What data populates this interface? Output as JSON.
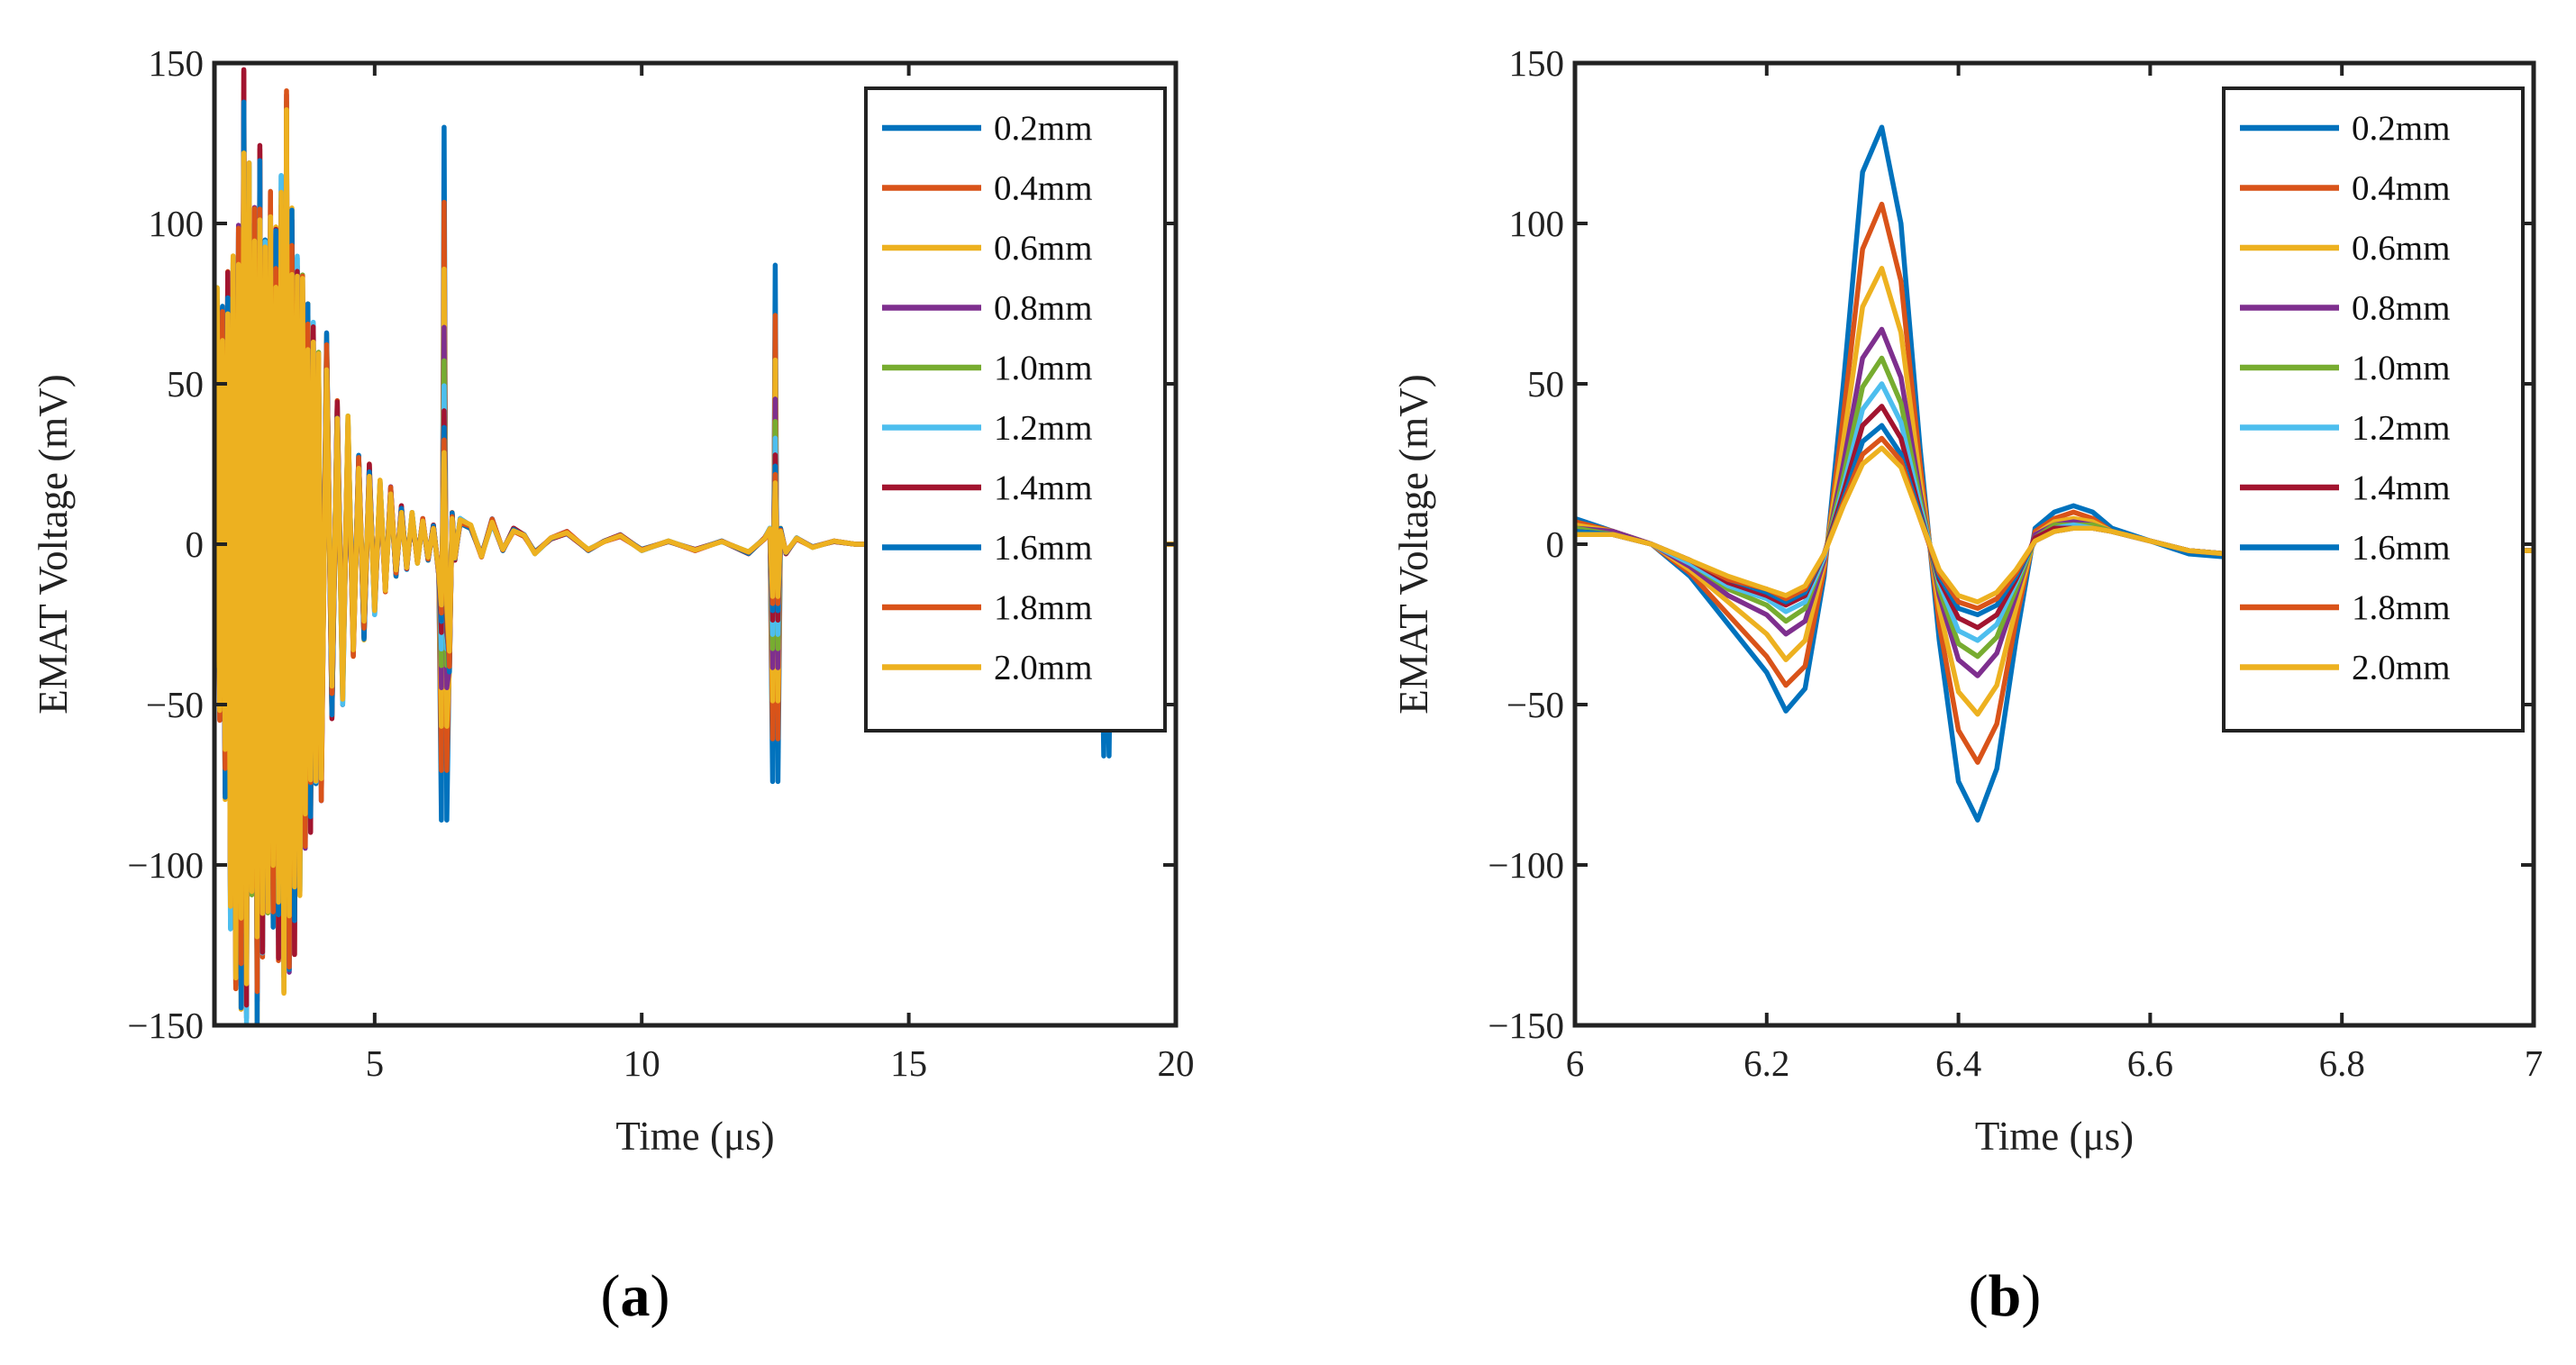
{
  "colors": {
    "s1": "#0072BD",
    "s2": "#D95319",
    "s3": "#EDB120",
    "s4": "#7E2F8E",
    "s5": "#77AC30",
    "s6": "#4DBEEE",
    "s7": "#A2142F",
    "s8": "#0072BD",
    "s9": "#D95319",
    "s10": "#EDB120"
  },
  "chart_data": [
    {
      "id": "a",
      "type": "line",
      "panel_label": {
        "open": "(",
        "letter": "a",
        "close": ")"
      },
      "xlabel": "Time (μs)",
      "ylabel": "EMAT Voltage (mV)",
      "xlim": [
        2,
        20
      ],
      "ylim": [
        -150,
        150
      ],
      "xticks": [
        5,
        10,
        15,
        20
      ],
      "xtick_labels": [
        "5",
        "10",
        "15",
        "20"
      ],
      "yticks": [
        -150,
        -100,
        -50,
        0,
        50,
        100,
        150
      ],
      "ytick_labels": [
        "−150",
        "−100",
        "−50",
        "0",
        "50",
        "100",
        "150"
      ],
      "legend_position": "top-right",
      "legend": [
        "0.2mm",
        "0.4mm",
        "0.6mm",
        "0.8mm",
        "1.0mm",
        "1.2mm",
        "1.4mm",
        "1.6mm",
        "1.8mm",
        "2.0mm"
      ],
      "series_scales": [
        1.0,
        0.82,
        0.66,
        0.52,
        0.44,
        0.38,
        0.32,
        0.28,
        0.25,
        0.22
      ],
      "x": [
        2.0,
        2.05,
        2.1,
        2.15,
        2.2,
        2.25,
        2.3,
        2.35,
        2.4,
        2.45,
        2.5,
        2.55,
        2.6,
        2.65,
        2.7,
        2.75,
        2.8,
        2.85,
        2.9,
        2.95,
        3.0,
        3.05,
        3.1,
        3.15,
        3.2,
        3.25,
        3.3,
        3.35,
        3.4,
        3.45,
        3.5,
        3.55,
        3.6,
        3.65,
        3.7,
        3.75,
        3.8,
        3.85,
        3.9,
        3.95,
        4.0,
        4.1,
        4.2,
        4.3,
        4.4,
        4.5,
        4.6,
        4.7,
        4.8,
        4.9,
        5.0,
        5.1,
        5.2,
        5.3,
        5.4,
        5.5,
        5.6,
        5.7,
        5.8,
        5.9,
        6.0,
        6.1,
        6.2,
        6.25,
        6.3,
        6.35,
        6.4,
        6.45,
        6.5,
        6.6,
        6.8,
        7.0,
        7.2,
        7.4,
        7.6,
        7.8,
        8.0,
        8.3,
        8.6,
        9.0,
        9.3,
        9.6,
        10.0,
        10.5,
        11.0,
        11.5,
        12.0,
        12.3,
        12.4,
        12.45,
        12.5,
        12.55,
        12.6,
        12.7,
        12.9,
        13.2,
        13.6,
        14.0,
        14.5,
        15.0,
        15.5,
        16.0,
        16.5,
        17.0,
        17.5,
        18.0,
        18.5,
        18.6,
        18.65,
        18.7,
        18.75,
        18.8,
        19.0,
        19.5,
        20.0
      ],
      "common": [
        -40,
        80,
        -55,
        75,
        -80,
        85,
        -120,
        90,
        -140,
        100,
        -145,
        148,
        -150,
        120,
        -110,
        105,
        -150,
        125,
        -130,
        95,
        -115,
        110,
        -120,
        100,
        -130,
        115,
        -140,
        142,
        -135,
        105,
        -128,
        90,
        -110,
        85,
        -95,
        75,
        -90,
        70,
        -75,
        60,
        -80,
        66,
        -55,
        45,
        -50,
        40,
        -35,
        28,
        -30,
        25,
        -22,
        20,
        -15,
        18,
        -10,
        12,
        -8,
        10,
        -6,
        8,
        -5,
        6,
        -10,
        40,
        -30,
        20,
        -40,
        10,
        -5,
        8,
        6,
        -4,
        8,
        -2,
        5,
        3,
        -3,
        2,
        4,
        -2,
        1,
        3,
        -2,
        1,
        -2,
        1,
        -3,
        2,
        5,
        -15,
        20,
        -20,
        5,
        -3,
        2,
        -1,
        1,
        0,
        0,
        0,
        0,
        0,
        0,
        0,
        0,
        0,
        0,
        -5,
        5,
        -8,
        2,
        0,
        0,
        0,
        0
      ],
      "spikes": [
        {
          "x": 6.3,
          "up": 130,
          "down": -86,
          "at": [
            6.25,
            6.35
          ]
        },
        {
          "x": 12.5,
          "up": 87,
          "down": -74,
          "at": [
            12.45,
            12.55
          ]
        },
        {
          "x": 18.7,
          "up": 0,
          "down": -66,
          "at": [
            18.65,
            18.75
          ]
        }
      ]
    },
    {
      "id": "b",
      "type": "line",
      "panel_label": {
        "open": "(",
        "letter": "b",
        "close": ")"
      },
      "xlabel": "Time (μs)",
      "ylabel": "EMAT Voltage (mV)",
      "xlim": [
        6,
        7
      ],
      "ylim": [
        -150,
        150
      ],
      "xticks": [
        6,
        6.2,
        6.4,
        6.6,
        6.8,
        7
      ],
      "xtick_labels": [
        "6",
        "6.2",
        "6.4",
        "6.6",
        "6.8",
        "7"
      ],
      "yticks": [
        -150,
        -100,
        -50,
        0,
        50,
        100,
        150
      ],
      "ytick_labels": [
        "−150",
        "−100",
        "−50",
        "0",
        "50",
        "100",
        "150"
      ],
      "legend_position": "top-right",
      "legend": [
        "0.2mm",
        "0.4mm",
        "0.6mm",
        "0.8mm",
        "1.0mm",
        "1.2mm",
        "1.4mm",
        "1.6mm",
        "1.8mm",
        "2.0mm"
      ],
      "x": [
        6.0,
        6.04,
        6.08,
        6.12,
        6.16,
        6.2,
        6.22,
        6.24,
        6.26,
        6.28,
        6.3,
        6.32,
        6.34,
        6.36,
        6.38,
        6.4,
        6.42,
        6.44,
        6.46,
        6.48,
        6.5,
        6.52,
        6.54,
        6.56,
        6.6,
        6.64,
        6.68,
        6.72,
        6.76,
        6.8,
        6.84,
        6.88,
        6.92,
        6.96,
        7.0
      ],
      "series": [
        {
          "name": "0.2mm",
          "values": [
            8,
            4,
            0,
            -10,
            -25,
            -40,
            -52,
            -45,
            -10,
            50,
            116,
            130,
            100,
            30,
            -30,
            -74,
            -86,
            -70,
            -30,
            5,
            10,
            12,
            10,
            5,
            1,
            -3,
            -4,
            -2,
            -1,
            0,
            -1,
            -2,
            -2,
            -2,
            -2
          ]
        },
        {
          "name": "0.4mm",
          "values": [
            7,
            4,
            0,
            -9,
            -22,
            -35,
            -44,
            -38,
            -8,
            40,
            92,
            106,
            82,
            25,
            -25,
            -58,
            -68,
            -56,
            -24,
            4,
            8,
            10,
            8,
            4,
            1,
            -2,
            -3,
            -2,
            -1,
            0,
            -1,
            -2,
            -2,
            -2,
            -2
          ]
        },
        {
          "name": "0.6mm",
          "values": [
            6,
            4,
            0,
            -8,
            -18,
            -28,
            -36,
            -30,
            -6,
            32,
            74,
            86,
            66,
            20,
            -20,
            -46,
            -53,
            -44,
            -20,
            3,
            7,
            8,
            7,
            4,
            1,
            -2,
            -3,
            -2,
            -1,
            0,
            -1,
            -2,
            -2,
            -2,
            -2
          ]
        },
        {
          "name": "0.8mm",
          "values": [
            5,
            4,
            0,
            -7,
            -16,
            -22,
            -28,
            -24,
            -5,
            25,
            58,
            67,
            52,
            16,
            -16,
            -36,
            -41,
            -34,
            -16,
            3,
            6,
            7,
            6,
            4,
            1,
            -2,
            -3,
            -2,
            -1,
            0,
            -1,
            -2,
            -2,
            -2,
            -2
          ]
        },
        {
          "name": "1.0mm",
          "values": [
            5,
            3,
            0,
            -6,
            -14,
            -19,
            -24,
            -20,
            -4,
            21,
            49,
            58,
            44,
            14,
            -14,
            -31,
            -35,
            -29,
            -14,
            2,
            6,
            6,
            6,
            4,
            1,
            -2,
            -3,
            -2,
            -1,
            0,
            -1,
            -2,
            -2,
            -2,
            -2
          ]
        },
        {
          "name": "1.2mm",
          "values": [
            4,
            3,
            0,
            -6,
            -13,
            -17,
            -21,
            -18,
            -4,
            18,
            42,
            50,
            38,
            12,
            -12,
            -27,
            -30,
            -25,
            -12,
            2,
            5,
            6,
            5,
            4,
            1,
            -2,
            -3,
            -2,
            -1,
            0,
            -1,
            -2,
            -2,
            -2,
            -2
          ]
        },
        {
          "name": "1.4mm",
          "values": [
            4,
            3,
            0,
            -5,
            -12,
            -16,
            -19,
            -16,
            -3,
            16,
            37,
            43,
            33,
            10,
            -11,
            -23,
            -26,
            -22,
            -11,
            2,
            5,
            5,
            5,
            4,
            1,
            -2,
            -3,
            -2,
            -1,
            0,
            -1,
            -2,
            -2,
            -2,
            -2
          ]
        },
        {
          "name": "1.6mm",
          "values": [
            4,
            3,
            0,
            -5,
            -11,
            -15,
            -18,
            -15,
            -3,
            14,
            32,
            37,
            28,
            9,
            -10,
            -20,
            -22,
            -19,
            -10,
            1,
            4,
            5,
            5,
            4,
            1,
            -2,
            -3,
            -2,
            -1,
            0,
            -1,
            -2,
            -2,
            -2,
            -2
          ]
        },
        {
          "name": "1.8mm",
          "values": [
            3,
            3,
            0,
            -5,
            -11,
            -14,
            -17,
            -14,
            -3,
            13,
            28,
            33,
            26,
            8,
            -9,
            -18,
            -20,
            -17,
            -9,
            1,
            4,
            5,
            5,
            4,
            1,
            -2,
            -3,
            -2,
            -1,
            0,
            -1,
            -2,
            -2,
            -2,
            -2
          ]
        },
        {
          "name": "2.0mm",
          "values": [
            3,
            3,
            0,
            -5,
            -10,
            -14,
            -16,
            -13,
            -3,
            12,
            25,
            30,
            24,
            8,
            -8,
            -16,
            -18,
            -15,
            -8,
            1,
            4,
            5,
            5,
            4,
            1,
            -2,
            -3,
            -2,
            -1,
            0,
            -1,
            -2,
            -2,
            -2,
            -2
          ]
        }
      ]
    }
  ]
}
